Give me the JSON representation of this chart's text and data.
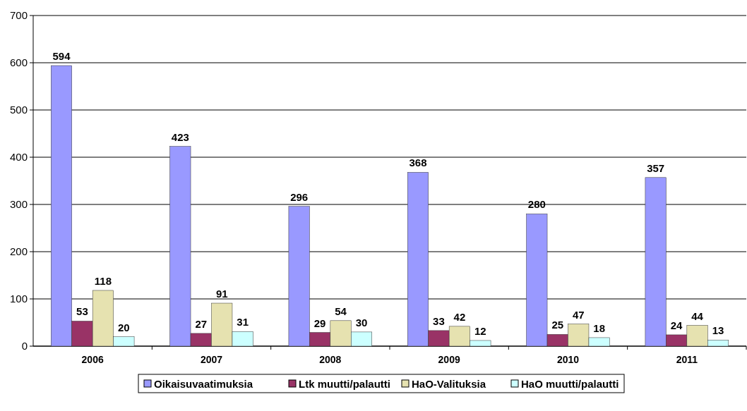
{
  "chart_data": {
    "type": "bar",
    "categories": [
      "2006",
      "2007",
      "2008",
      "2009",
      "2010",
      "2011"
    ],
    "series": [
      {
        "name": "Oikaisuvaatimuksia",
        "color": "#9999ff",
        "values": [
          594,
          423,
          296,
          368,
          280,
          357
        ]
      },
      {
        "name": "Ltk muutti/palautti",
        "color": "#993366",
        "values": [
          53,
          27,
          29,
          33,
          25,
          24
        ]
      },
      {
        "name": "HaO-Valituksia",
        "color": "#e6e2b0",
        "values": [
          118,
          91,
          54,
          42,
          47,
          44
        ]
      },
      {
        "name": "HaO muutti/palautti",
        "color": "#ccffff",
        "values": [
          20,
          31,
          30,
          12,
          18,
          13
        ]
      }
    ],
    "ylim": [
      0,
      700
    ],
    "yticks": [
      0,
      100,
      200,
      300,
      400,
      500,
      600,
      700
    ],
    "grid": "y",
    "legend": "bottom",
    "data_labels": true
  }
}
